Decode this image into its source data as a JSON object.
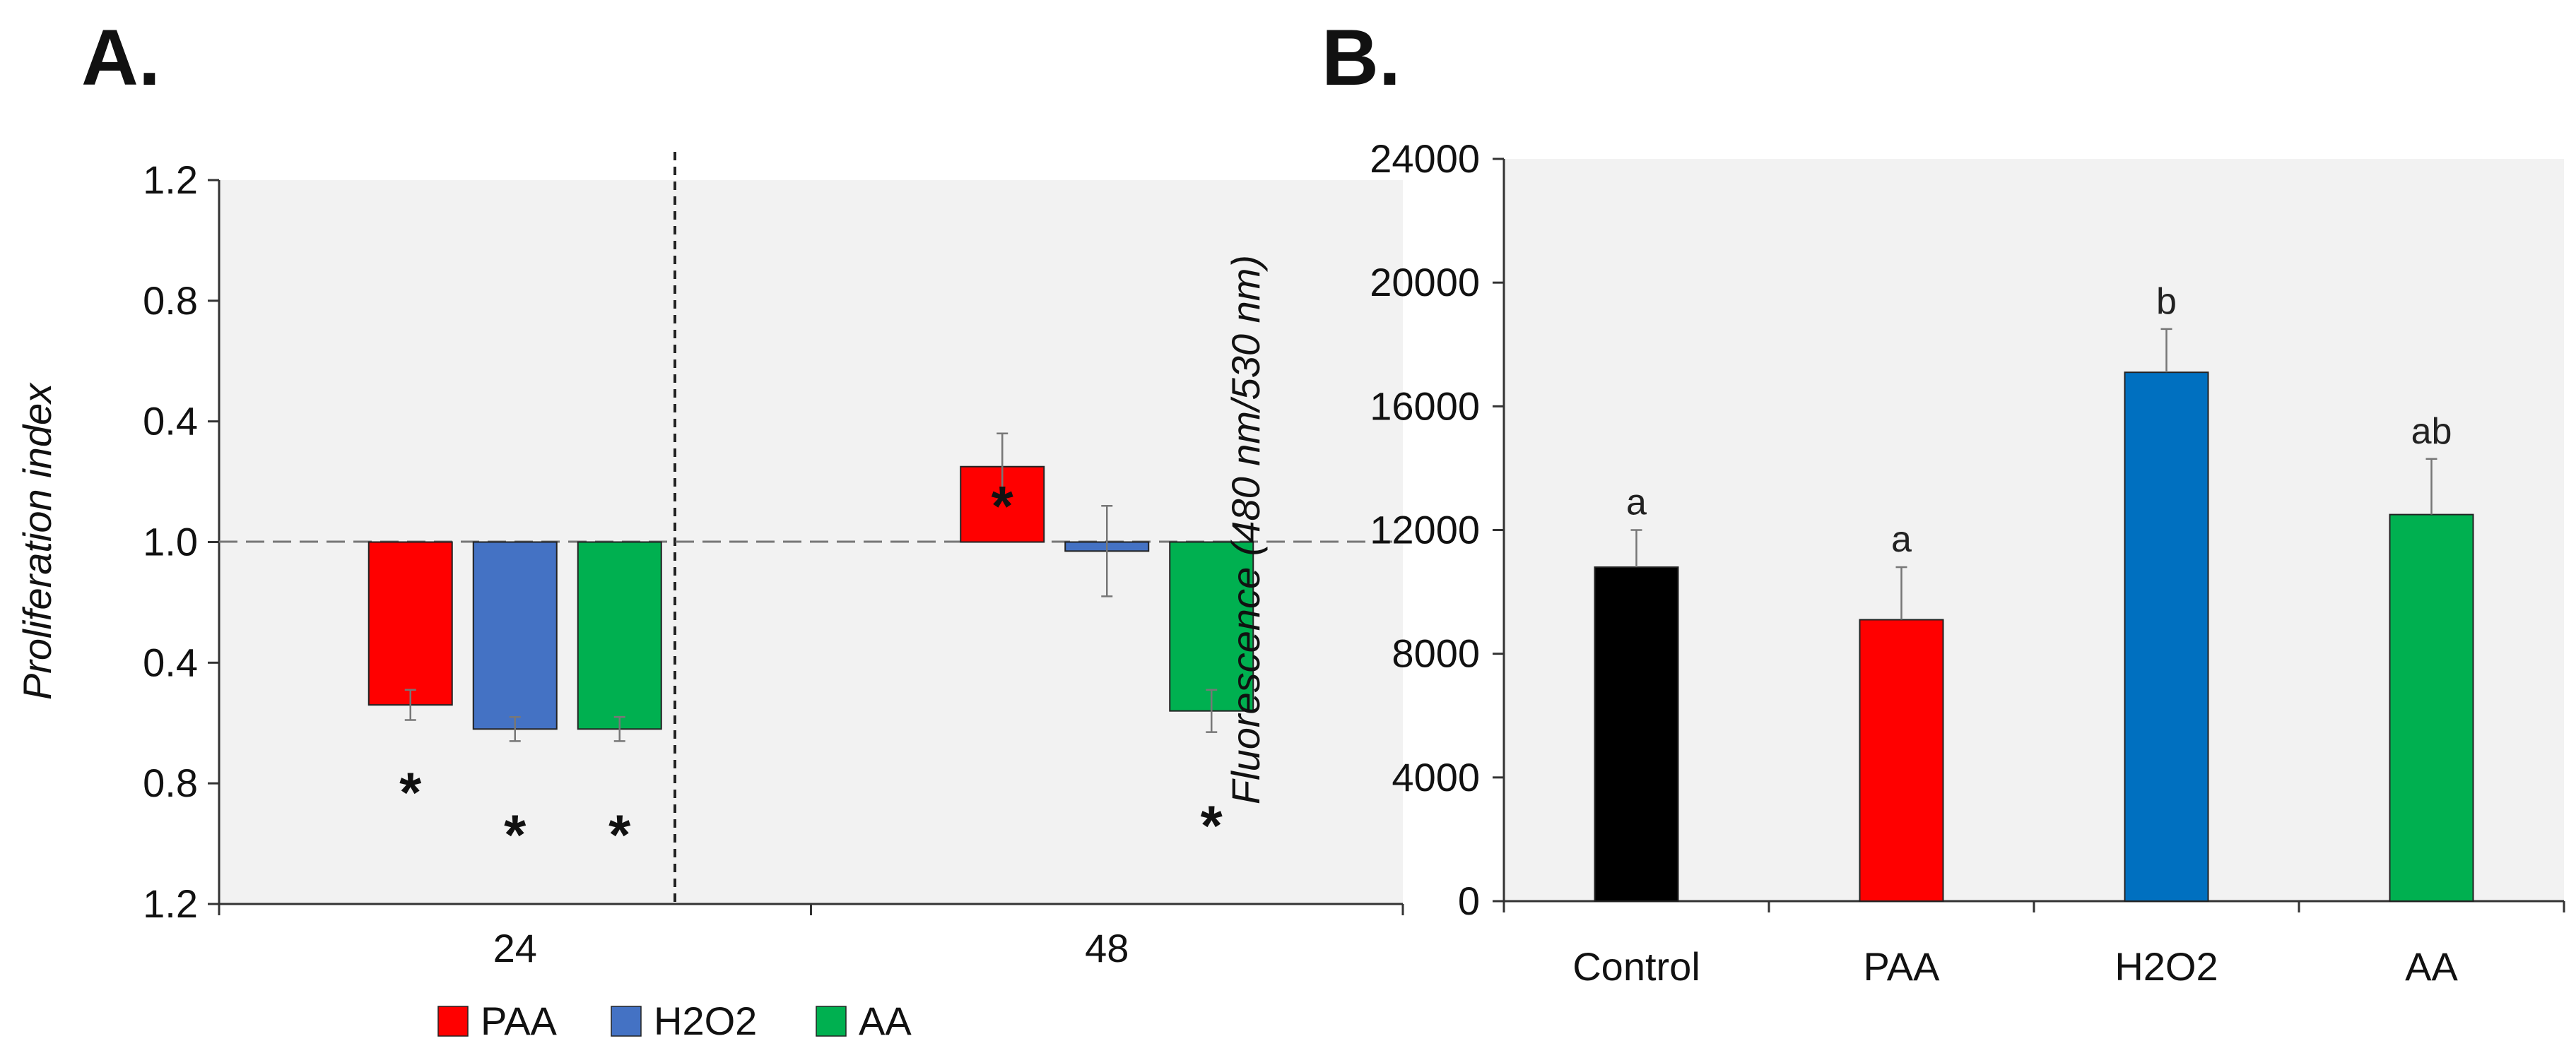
{
  "chart_data": [
    {
      "panel": "A.",
      "type": "bar",
      "ylabel": "Proliferation index",
      "xlabel": "",
      "y_tick_labels": [
        "1.2",
        "0.8",
        "0.4",
        "1.0",
        "0.4",
        "0.8",
        "1.2"
      ],
      "ylim": [
        -1.2,
        1.2
      ],
      "baseline": 1.0,
      "categories": [
        "24",
        "48"
      ],
      "series": [
        {
          "name": "PAA",
          "color": "#ff0000",
          "values": [
            -0.54,
            0.25
          ],
          "errors": [
            0.05,
            0.11
          ]
        },
        {
          "name": "H2O2",
          "color": "#4472c4",
          "values": [
            -0.62,
            -0.03
          ],
          "errors": [
            0.04,
            0.15
          ]
        },
        {
          "name": "AA",
          "color": "#00b050",
          "values": [
            -0.62,
            -0.56
          ],
          "errors": [
            0.04,
            0.07
          ]
        }
      ],
      "significance": [
        [
          "*",
          "*"
        ],
        [
          "*",
          ""
        ],
        [
          "*",
          "*"
        ]
      ],
      "legend_position": "bottom"
    },
    {
      "panel": "B.",
      "type": "bar",
      "ylabel": "Fluorescence (480 nm/530 nm)",
      "xlabel": "",
      "ylim": [
        0,
        24000
      ],
      "y_ticks": [
        0,
        4000,
        8000,
        12000,
        16000,
        20000,
        24000
      ],
      "categories": [
        "Control",
        "PAA",
        "H2O2",
        "AA"
      ],
      "values": [
        10800,
        9100,
        17100,
        12500
      ],
      "errors": [
        1200,
        1700,
        1400,
        1800
      ],
      "colors": [
        "#000000",
        "#ff0000",
        "#0070c0",
        "#00b050"
      ],
      "letters": [
        "a",
        "a",
        "b",
        "ab"
      ]
    }
  ]
}
